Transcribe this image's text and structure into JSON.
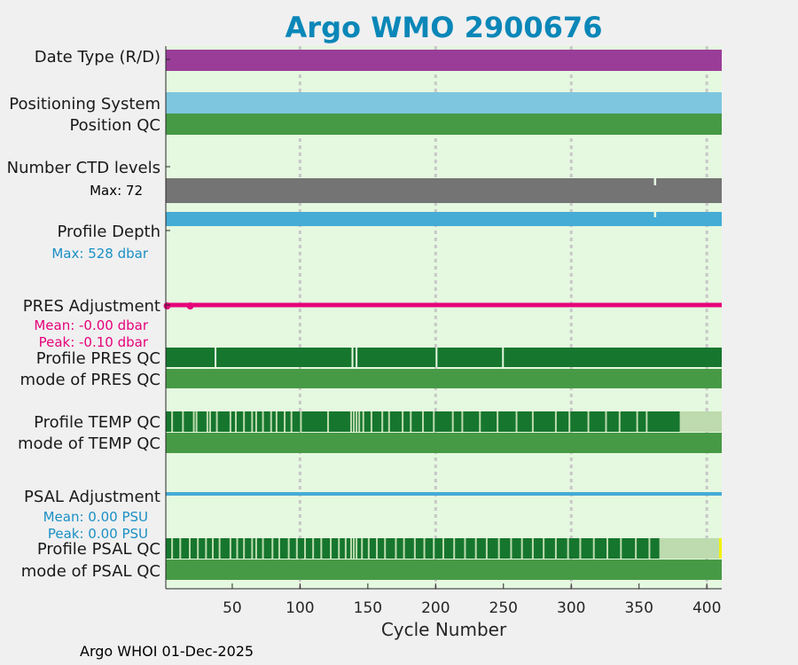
{
  "colors": {
    "background": "#f0f0f0",
    "plot_background": "#e5f8e0",
    "title": "#0a87b8",
    "data_mode_delayed": "#9a3d99",
    "positioning": "#7ec6e0",
    "qc_good": "#16762e",
    "qc_good_mode": "#479a45",
    "qc_probably_bad": "#bddbae",
    "qc_bad": "#f2f206",
    "ctd_levels": "#747474",
    "profile_depth": "#45acd6",
    "pres_adjust": "#e6027a",
    "psal_adjust": "#45acd6",
    "pres_text": "#e6027a",
    "psal_text": "#1a8fc5",
    "grid": "#c8c8c8"
  },
  "title": "Argo WMO 2900676",
  "footer": "Argo WHOI 01-Dec-2025",
  "labels": {
    "date_type": "Date Type (R/D)",
    "positioning_system": "Positioning System",
    "position_qc": "Position QC",
    "ctd_levels": "Number CTD levels",
    "ctd_max": "Max: 72",
    "profile_depth": "Profile Depth",
    "depth_max": "Max:  528 dbar",
    "pres_adj": "PRES Adjustment",
    "pres_mean": "Mean: -0.00 dbar",
    "pres_peak": "Peak: -0.10 dbar",
    "profile_pres_qc": "Profile PRES QC",
    "mode_pres_qc": "mode of PRES QC",
    "profile_temp_qc": "Profile TEMP QC",
    "mode_temp_qc": "mode of TEMP QC",
    "psal_adj": "PSAL Adjustment",
    "psal_mean": "Mean: 0.00 PSU",
    "psal_peak": "Peak: 0.00 PSU",
    "profile_psal_qc": "Profile PSAL QC",
    "mode_psal_qc": "mode of PSAL QC"
  },
  "chart_data": {
    "type": "bar",
    "xlabel": "Cycle Number",
    "xlim": [
      1,
      411
    ],
    "xticks": [
      50,
      100,
      150,
      200,
      250,
      300,
      350,
      400
    ],
    "grid": true,
    "tracks": {
      "date_type": {
        "value": "D",
        "range": [
          1,
          411
        ]
      },
      "positioning_system": {
        "range": [
          1,
          411
        ]
      },
      "position_qc": {
        "range": [
          1,
          411
        ]
      },
      "ctd_levels": {
        "max": 72,
        "typical": 70,
        "dips": [
          {
            "x": 361,
            "value": 65
          }
        ]
      },
      "profile_depth": {
        "max": 528,
        "typical_dbar": 510,
        "dips": [
          {
            "x": 361,
            "value": 495
          }
        ]
      },
      "pres_adjustment": {
        "mean": -0.0,
        "peak": -0.1,
        "units": "dbar",
        "outliers": [
          2,
          19
        ]
      },
      "profile_pres_qc": {
        "gaps": [
          37,
          138,
          141,
          200,
          249
        ]
      },
      "profile_temp_qc": {
        "gaps": [
          5,
          13,
          21,
          23,
          31,
          33,
          38,
          48,
          52,
          58,
          64,
          67,
          72,
          78,
          82,
          88,
          93,
          100,
          120,
          137,
          139,
          141,
          143,
          146,
          152,
          160,
          165,
          175,
          181,
          190,
          198,
          212,
          219,
          232,
          245,
          259,
          271,
          288,
          298,
          312,
          325,
          335,
          348,
          355
        ],
        "probably_bad_from": 380
      },
      "psal_adjustment": {
        "mean": 0.0,
        "peak": 0.0,
        "units": "PSU"
      },
      "profile_psal_qc": {
        "gaps": [
          5,
          11,
          18,
          24,
          30,
          35,
          40,
          48,
          53,
          58,
          64,
          67,
          72,
          79,
          84,
          91,
          97,
          103,
          109,
          115,
          122,
          128,
          133,
          137,
          139,
          141,
          145,
          150,
          156,
          162,
          170,
          176,
          184,
          191,
          198,
          205,
          213,
          221,
          229,
          237,
          246,
          255,
          263,
          271,
          279,
          288,
          297,
          306,
          316,
          326,
          336,
          347,
          357
        ],
        "probably_bad_from": 365,
        "bad_from": 409
      },
      "mode_qc": {
        "value": "1"
      }
    }
  }
}
